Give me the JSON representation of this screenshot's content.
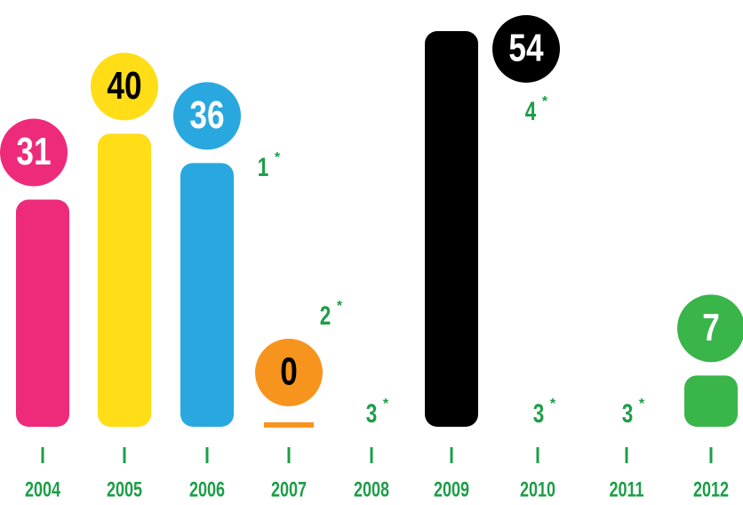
{
  "chart_data": {
    "type": "bar",
    "categories": [
      "2004",
      "2005",
      "2006",
      "2007",
      "2008",
      "2009",
      "2010",
      "2011",
      "2012"
    ],
    "values": [
      31,
      40,
      36,
      0,
      null,
      54,
      null,
      null,
      7
    ],
    "colors": [
      "#ee2a7b",
      "#ffdd17",
      "#29a8e0",
      "#f7941d",
      null,
      "#000000",
      null,
      null,
      "#39b54a"
    ],
    "label_text_colors": [
      "#ffffff",
      "#000000",
      "#ffffff",
      "#000000",
      null,
      "#ffffff",
      null,
      null,
      "#ffffff"
    ],
    "annotations": [
      "1",
      "2",
      "3",
      "4",
      "3",
      "3"
    ],
    "footnote_mark": "*",
    "axis_color": "#1e9e48",
    "ylim": [
      0,
      54
    ]
  }
}
